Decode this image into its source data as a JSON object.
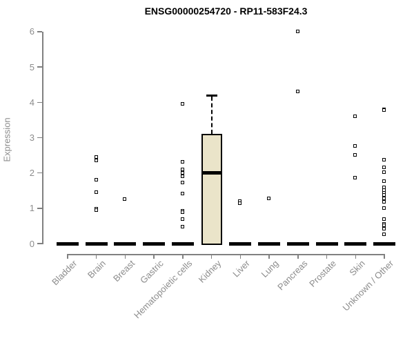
{
  "title": "ENSG00000254720 - RP11-583F24.3",
  "chart_data": {
    "type": "boxplot",
    "title": "ENSG00000254720 - RP11-583F24.3",
    "ylabel": "Expression",
    "xlabel": "",
    "ylim": [
      0,
      6
    ],
    "yticks": [
      0,
      1,
      2,
      3,
      4,
      5,
      6
    ],
    "grid": "off",
    "categories": [
      "Bladder",
      "Brain",
      "Breast",
      "Gastric",
      "Hematopoietic cells",
      "Kidney",
      "Liver",
      "Lung",
      "Pancreas",
      "Prostate",
      "Skin",
      "Unknown / Other"
    ],
    "groups": [
      {
        "category": "Bladder",
        "q1": 0,
        "median": 0,
        "q3": 0,
        "whisker_low": 0,
        "whisker_high": 0,
        "points": []
      },
      {
        "category": "Brain",
        "q1": 0,
        "median": 0,
        "q3": 0,
        "whisker_low": 0,
        "whisker_high": 0,
        "points": [
          2.45,
          2.35,
          1.8,
          1.45,
          0.97,
          0.93
        ]
      },
      {
        "category": "Breast",
        "q1": 0,
        "median": 0,
        "q3": 0,
        "whisker_low": 0,
        "whisker_high": 0,
        "points": [
          1.25
        ]
      },
      {
        "category": "Gastric",
        "q1": 0,
        "median": 0,
        "q3": 0,
        "whisker_low": 0,
        "whisker_high": 0,
        "points": []
      },
      {
        "category": "Hematopoietic cells",
        "q1": 0,
        "median": 0,
        "q3": 0,
        "whisker_low": 0,
        "whisker_high": 0,
        "points": [
          3.95,
          2.3,
          2.1,
          2.0,
          1.9,
          1.72,
          1.4,
          0.92,
          0.87,
          0.68,
          0.47
        ]
      },
      {
        "category": "Kidney",
        "q1": 0,
        "median": 2.0,
        "q3": 3.1,
        "whisker_low": 0,
        "whisker_high": 4.2,
        "points": []
      },
      {
        "category": "Liver",
        "q1": 0,
        "median": 0,
        "q3": 0,
        "whisker_low": 0,
        "whisker_high": 0,
        "points": [
          1.2,
          1.13
        ]
      },
      {
        "category": "Lung",
        "q1": 0,
        "median": 0,
        "q3": 0,
        "whisker_low": 0,
        "whisker_high": 0,
        "points": [
          1.28
        ]
      },
      {
        "category": "Pancreas",
        "q1": 0,
        "median": 0,
        "q3": 0,
        "whisker_low": 0,
        "whisker_high": 0,
        "points": [
          6.0,
          4.3
        ]
      },
      {
        "category": "Prostate",
        "q1": 0,
        "median": 0,
        "q3": 0,
        "whisker_low": 0,
        "whisker_high": 0,
        "points": []
      },
      {
        "category": "Skin",
        "q1": 0,
        "median": 0,
        "q3": 0,
        "whisker_low": 0,
        "whisker_high": 0,
        "points": [
          3.6,
          2.75,
          2.5,
          1.86
        ]
      },
      {
        "category": "Unknown / Other",
        "q1": 0,
        "median": 0,
        "q3": 0,
        "whisker_low": 0,
        "whisker_high": 0,
        "points": [
          3.8,
          3.77,
          2.36,
          2.15,
          2.02,
          1.76,
          1.58,
          1.5,
          1.43,
          1.36,
          1.28,
          1.17,
          1.0,
          0.68,
          0.55,
          0.5,
          0.42,
          0.25
        ]
      }
    ],
    "colors": {
      "box_fill": "#EAE4C9",
      "box_border": "#000000",
      "median": "#000000",
      "point_border": "#000000",
      "point_fill": "#FFFFFF",
      "axis_text": "#8C8C8C",
      "axis_line": "#808080",
      "title_text": "#000000"
    },
    "legend": "none"
  }
}
